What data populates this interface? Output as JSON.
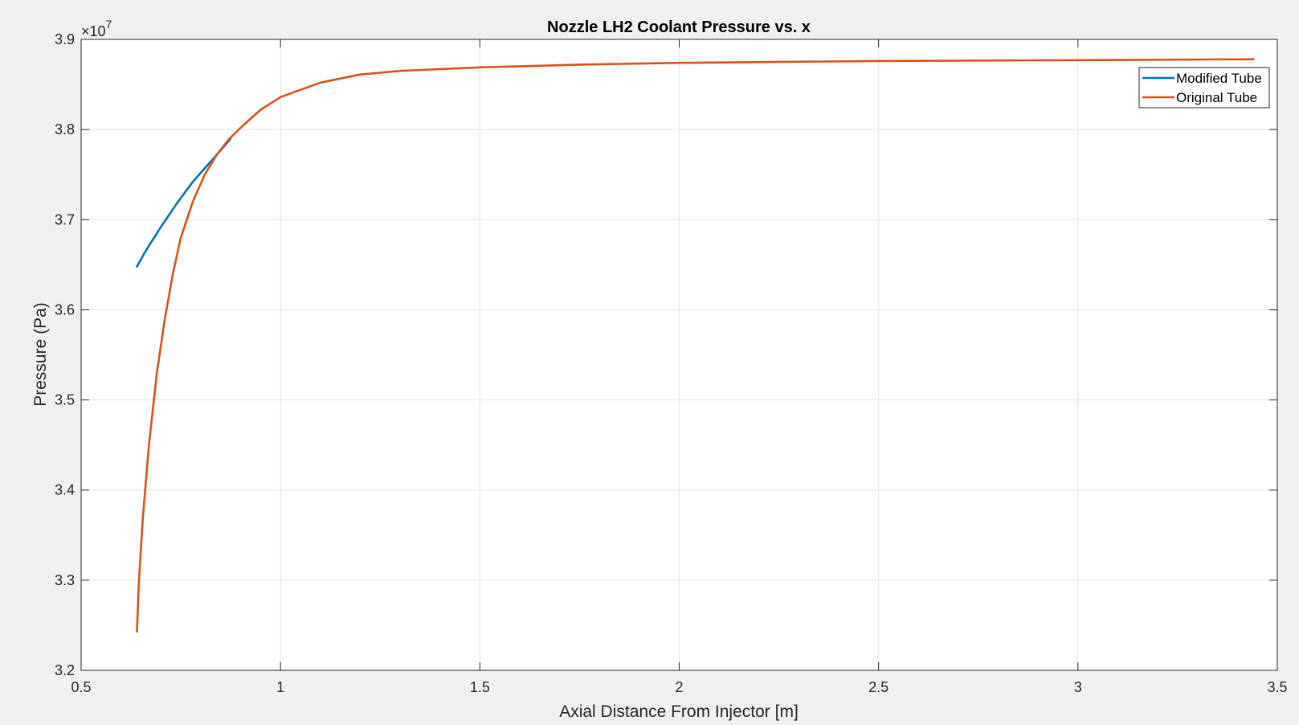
{
  "chart_data": {
    "type": "line",
    "title": "Nozzle LH2 Coolant Pressure vs. x",
    "xlabel": "Axial Distance From Injector [m]",
    "ylabel": "Pressure (Pa)",
    "y_exponent_base": "×10",
    "y_exponent_power": "7",
    "xlim": [
      0.5,
      3.5
    ],
    "ylim": [
      3.2,
      3.9
    ],
    "y_scale_factor": 10000000,
    "xticks": [
      0.5,
      1,
      1.5,
      2,
      2.5,
      3,
      3.5
    ],
    "xtick_labels": [
      "0.5",
      "1",
      "1.5",
      "2",
      "2.5",
      "3",
      "3.5"
    ],
    "yticks": [
      3.2,
      3.3,
      3.4,
      3.5,
      3.6,
      3.7,
      3.8,
      3.9
    ],
    "ytick_labels": [
      "3.2",
      "3.3",
      "3.4",
      "3.5",
      "3.6",
      "3.7",
      "3.8",
      "3.9"
    ],
    "grid": true,
    "legend_position": "top-right",
    "series": [
      {
        "name": "Modified Tube",
        "color": "#0072BD",
        "x": [
          0.64,
          0.66,
          0.7,
          0.74,
          0.78,
          0.82,
          0.86,
          0.875
        ],
        "y": [
          3.648,
          3.664,
          3.692,
          3.718,
          3.742,
          3.762,
          3.782,
          3.79
        ]
      },
      {
        "name": "Original Tube",
        "color": "#D95319",
        "x": [
          0.64,
          0.645,
          0.655,
          0.67,
          0.69,
          0.71,
          0.73,
          0.75,
          0.78,
          0.81,
          0.84,
          0.87,
          0.9,
          0.95,
          1.0,
          1.1,
          1.2,
          1.3,
          1.5,
          1.75,
          2.0,
          2.5,
          3.0,
          3.44
        ],
        "y": [
          3.243,
          3.3,
          3.37,
          3.45,
          3.53,
          3.59,
          3.64,
          3.68,
          3.72,
          3.75,
          3.772,
          3.789,
          3.802,
          3.822,
          3.836,
          3.852,
          3.861,
          3.865,
          3.869,
          3.872,
          3.874,
          3.876,
          3.877,
          3.878
        ]
      }
    ]
  }
}
